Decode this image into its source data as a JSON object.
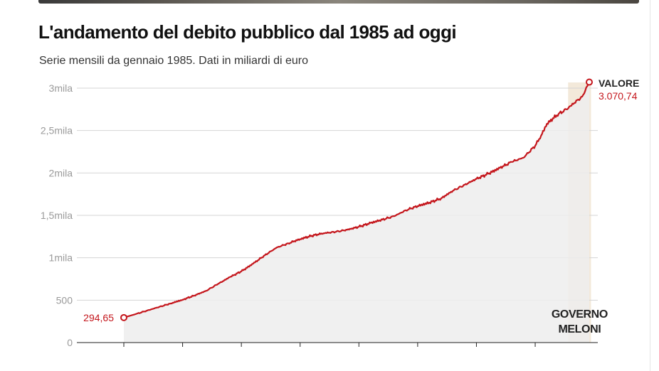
{
  "header": {
    "title": "L'andamento del debito pubblico dal 1985 ad oggi",
    "subtitle": "Serie mensili da gennaio 1985. Dati in miliardi di euro"
  },
  "colors": {
    "line": "#c4161c",
    "area": "#ededed",
    "highlight": "#f3e9da",
    "grid": "#d4d4d4",
    "tick_text": "#9a9a9a",
    "label_dark": "#222222"
  },
  "chart_data": {
    "type": "area",
    "title": "L'andamento del debito pubblico dal 1985 ad oggi",
    "subtitle": "Serie mensili da gennaio 1985. Dati in miliardi di euro",
    "xlabel": "",
    "ylabel": "",
    "xlim": [
      1985.0,
      2024.75
    ],
    "ylim": [
      0,
      3000
    ],
    "grid": true,
    "yticks": [
      0,
      500,
      1000,
      1500,
      2000,
      2500,
      3000
    ],
    "ytick_labels": [
      "0",
      "500",
      "1mila",
      "1,5mila",
      "2mila",
      "2,5mila",
      "3mila"
    ],
    "xticks": [
      1985,
      1990,
      1995,
      2000,
      2005,
      2010,
      2015,
      2020
    ],
    "x": [
      1985.0,
      1986.0,
      1987.0,
      1988.0,
      1989.0,
      1990.0,
      1991.0,
      1992.0,
      1993.0,
      1994.0,
      1995.0,
      1996.0,
      1997.0,
      1998.0,
      1999.0,
      2000.0,
      2001.0,
      2002.0,
      2003.0,
      2004.0,
      2005.0,
      2006.0,
      2007.0,
      2008.0,
      2009.0,
      2010.0,
      2011.0,
      2012.0,
      2013.0,
      2014.0,
      2015.0,
      2016.0,
      2017.0,
      2018.0,
      2019.0,
      2020.0,
      2020.5,
      2021.0,
      2022.0,
      2022.8,
      2023.0,
      2024.0,
      2024.6
    ],
    "values": [
      294.65,
      335,
      378,
      420,
      462,
      505,
      555,
      610,
      690,
      770,
      840,
      930,
      1030,
      1120,
      1170,
      1220,
      1260,
      1290,
      1305,
      1330,
      1365,
      1410,
      1450,
      1490,
      1560,
      1610,
      1650,
      1700,
      1790,
      1860,
      1930,
      1990,
      2060,
      2130,
      2180,
      2320,
      2440,
      2580,
      2700,
      2760,
      2790,
      2900,
      3070.74
    ],
    "highlight": {
      "from": 2022.8,
      "to": 2024.75,
      "label_lines": [
        "GOVERNO",
        "MELONI"
      ]
    },
    "annotations": {
      "start": {
        "value_label": "294,65"
      },
      "end": {
        "title": "VALORE",
        "value_label": "3.070,74"
      }
    }
  }
}
